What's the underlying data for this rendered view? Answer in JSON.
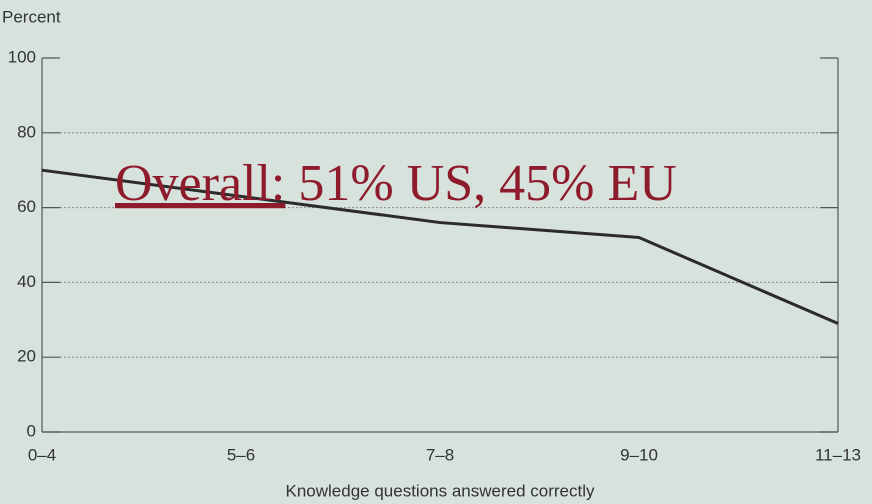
{
  "chart_data": {
    "type": "line",
    "y_axis_label": "Percent",
    "x_axis_label": "Knowledge questions answered correctly",
    "annotation": {
      "link": "Overall:",
      "text": "51% US, 45% EU"
    },
    "categories": [
      "0–4",
      "5–6",
      "7–8",
      "9–10",
      "11–13"
    ],
    "values": [
      70,
      63,
      56,
      52,
      29
    ],
    "color": "#2b2b2b",
    "ylim": [
      0,
      100
    ],
    "yticks": [
      0,
      20,
      40,
      60,
      80,
      100
    ],
    "grid": true
  }
}
